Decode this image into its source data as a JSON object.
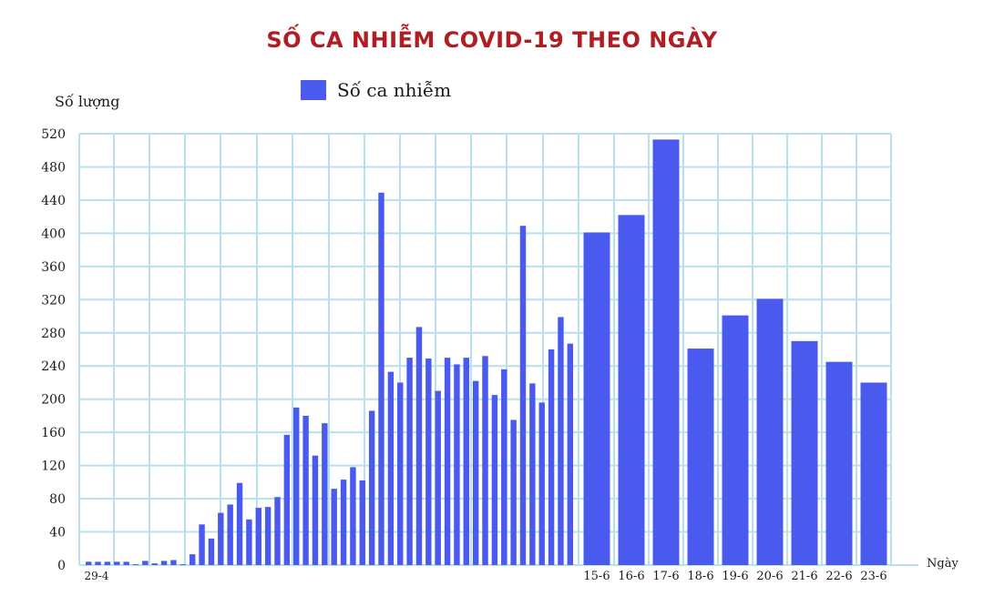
{
  "chart_data": {
    "type": "bar",
    "title": "SỐ CA NHIỄM COVID-19 THEO NGÀY",
    "xlabel": "Ngày",
    "ylabel": "Số lượng",
    "legend": "Số ca nhiễm",
    "ylim": [
      0,
      520
    ],
    "yticks": [
      0,
      40,
      80,
      120,
      160,
      200,
      240,
      280,
      320,
      360,
      400,
      440,
      480,
      520
    ],
    "grid": true,
    "colors": {
      "bar": "#4a5aef",
      "grid": "#b8e0ee",
      "title": "#b01e23"
    },
    "series": [
      {
        "name": "Số ca nhiễm",
        "daily_values": [
          4,
          4,
          4,
          4,
          4,
          1,
          5,
          2,
          5,
          6,
          1,
          13,
          49,
          32,
          63,
          73,
          99,
          55,
          69,
          70,
          82,
          157,
          190,
          180,
          132,
          171,
          92,
          103,
          118,
          102,
          186,
          449,
          233,
          220,
          250,
          287,
          249,
          210,
          250,
          242,
          250,
          222,
          252,
          205,
          236,
          175,
          409,
          219,
          196,
          260,
          299,
          267
        ],
        "values": [
          401,
          422,
          513,
          261,
          301,
          321,
          270,
          245,
          220
        ]
      }
    ],
    "first_label": "29-4",
    "categories": [
      "15-6",
      "16-6",
      "17-6",
      "18-6",
      "19-6",
      "20-6",
      "21-6",
      "22-6",
      "23-6"
    ]
  }
}
